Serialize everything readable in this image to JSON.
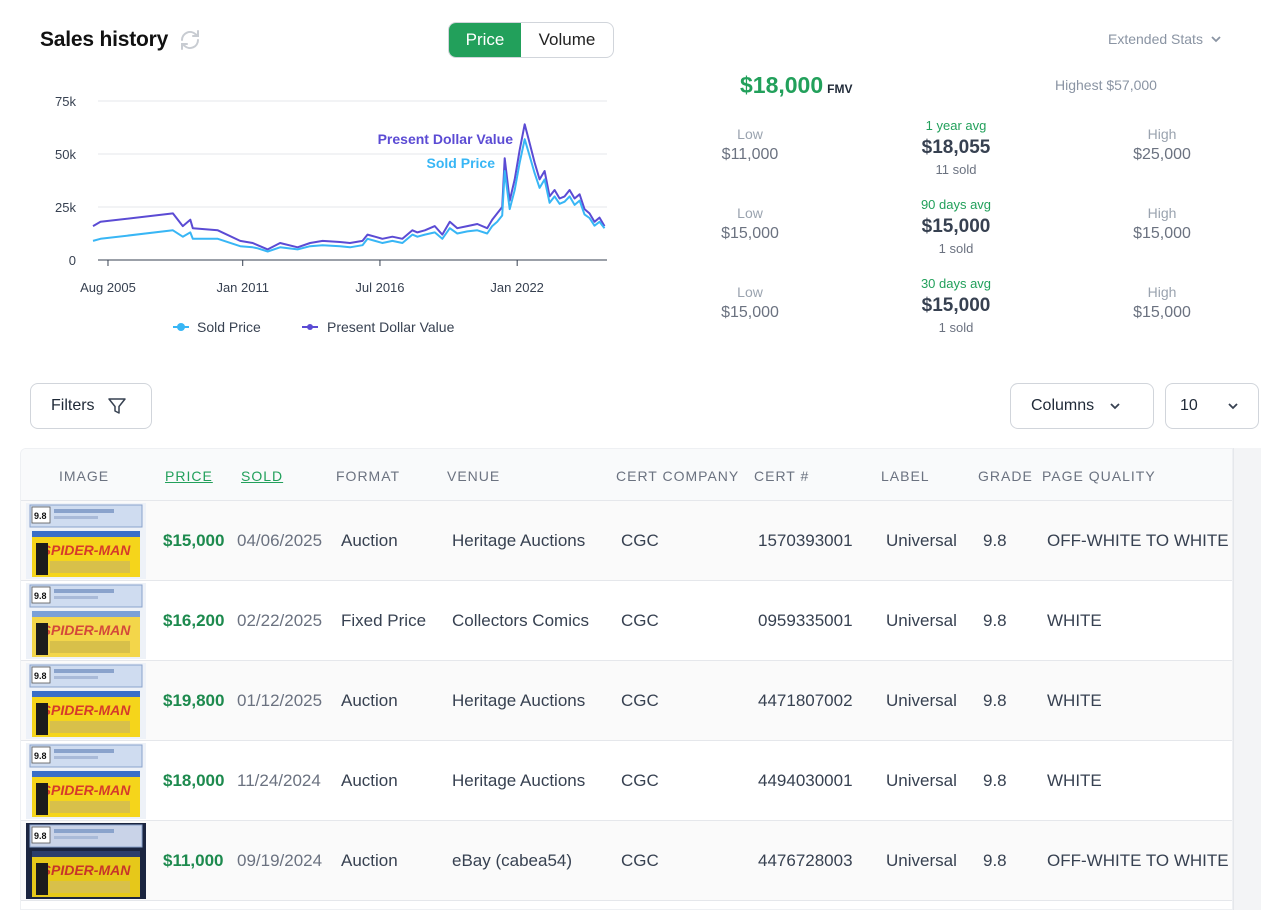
{
  "header": {
    "title": "Sales history",
    "toggle": {
      "price": "Price",
      "volume": "Volume",
      "active": "price"
    },
    "extended_stats": "Extended Stats"
  },
  "chart_data": {
    "type": "line",
    "x_ticks": [
      "Aug 2005",
      "Jan 2011",
      "Jul 2016",
      "Jan 2022"
    ],
    "y_ticks": [
      "0",
      "25k",
      "50k",
      "75k"
    ],
    "ylim": [
      0,
      75000
    ],
    "xlim": [
      2005.2,
      2025.6
    ],
    "annotations": [
      "Present Dollar Value",
      "Sold Price"
    ],
    "series": [
      {
        "name": "Present Dollar Value",
        "color": "#5b4bd4",
        "points": [
          [
            2005.0,
            16000
          ],
          [
            2005.3,
            18000
          ],
          [
            2008.2,
            22000
          ],
          [
            2008.6,
            16000
          ],
          [
            2008.9,
            19000
          ],
          [
            2009.0,
            15000
          ],
          [
            2010.0,
            14000
          ],
          [
            2010.9,
            9000
          ],
          [
            2011.4,
            8000
          ],
          [
            2011.6,
            7000
          ],
          [
            2012.0,
            5000
          ],
          [
            2012.5,
            8000
          ],
          [
            2013.2,
            6000
          ],
          [
            2013.7,
            8000
          ],
          [
            2014.2,
            9000
          ],
          [
            2014.9,
            8500
          ],
          [
            2015.3,
            8000
          ],
          [
            2015.8,
            9000
          ],
          [
            2016.0,
            12000
          ],
          [
            2016.3,
            11000
          ],
          [
            2016.6,
            10000
          ],
          [
            2017.0,
            11000
          ],
          [
            2017.4,
            10000
          ],
          [
            2017.8,
            14000
          ],
          [
            2018.0,
            13000
          ],
          [
            2018.3,
            14000
          ],
          [
            2018.7,
            16000
          ],
          [
            2019.0,
            12000
          ],
          [
            2019.3,
            18000
          ],
          [
            2019.6,
            15000
          ],
          [
            2020.0,
            16000
          ],
          [
            2020.4,
            17000
          ],
          [
            2020.8,
            15000
          ],
          [
            2021.0,
            19000
          ],
          [
            2021.2,
            22000
          ],
          [
            2021.4,
            25000
          ],
          [
            2021.5,
            48000
          ],
          [
            2021.7,
            28000
          ],
          [
            2021.9,
            38000
          ],
          [
            2022.1,
            52000
          ],
          [
            2022.3,
            64000
          ],
          [
            2022.5,
            55000
          ],
          [
            2022.7,
            46000
          ],
          [
            2022.9,
            38000
          ],
          [
            2023.1,
            42000
          ],
          [
            2023.3,
            30000
          ],
          [
            2023.5,
            33000
          ],
          [
            2023.7,
            29000
          ],
          [
            2023.9,
            30000
          ],
          [
            2024.1,
            33000
          ],
          [
            2024.3,
            29000
          ],
          [
            2024.5,
            31000
          ],
          [
            2024.7,
            24000
          ],
          [
            2024.9,
            22000
          ],
          [
            2025.1,
            18000
          ],
          [
            2025.3,
            20000
          ],
          [
            2025.5,
            16000
          ]
        ]
      },
      {
        "name": "Sold Price",
        "color": "#38b6f5",
        "points": [
          [
            2005.0,
            9000
          ],
          [
            2005.3,
            10000
          ],
          [
            2008.2,
            14000
          ],
          [
            2008.6,
            11000
          ],
          [
            2008.9,
            13000
          ],
          [
            2009.0,
            10000
          ],
          [
            2010.0,
            10000
          ],
          [
            2010.9,
            6500
          ],
          [
            2011.4,
            6000
          ],
          [
            2011.6,
            5500
          ],
          [
            2012.0,
            4000
          ],
          [
            2012.5,
            6000
          ],
          [
            2013.2,
            5000
          ],
          [
            2013.7,
            6500
          ],
          [
            2014.2,
            7000
          ],
          [
            2014.9,
            6500
          ],
          [
            2015.3,
            6000
          ],
          [
            2015.8,
            7000
          ],
          [
            2016.0,
            10000
          ],
          [
            2016.3,
            9000
          ],
          [
            2016.6,
            8000
          ],
          [
            2017.0,
            9000
          ],
          [
            2017.4,
            8000
          ],
          [
            2017.8,
            12000
          ],
          [
            2018.0,
            11000
          ],
          [
            2018.3,
            12000
          ],
          [
            2018.7,
            13000
          ],
          [
            2019.0,
            10000
          ],
          [
            2019.3,
            15000
          ],
          [
            2019.6,
            12500
          ],
          [
            2020.0,
            13500
          ],
          [
            2020.4,
            14000
          ],
          [
            2020.8,
            12500
          ],
          [
            2021.0,
            16000
          ],
          [
            2021.2,
            18000
          ],
          [
            2021.4,
            21000
          ],
          [
            2021.5,
            42000
          ],
          [
            2021.7,
            24000
          ],
          [
            2021.9,
            33000
          ],
          [
            2022.1,
            46000
          ],
          [
            2022.3,
            57000
          ],
          [
            2022.5,
            49000
          ],
          [
            2022.7,
            41000
          ],
          [
            2022.9,
            34000
          ],
          [
            2023.1,
            38000
          ],
          [
            2023.3,
            27000
          ],
          [
            2023.5,
            30000
          ],
          [
            2023.7,
            26500
          ],
          [
            2023.9,
            27500
          ],
          [
            2024.1,
            30000
          ],
          [
            2024.3,
            26000
          ],
          [
            2024.5,
            28000
          ],
          [
            2024.7,
            21500
          ],
          [
            2024.9,
            19800
          ],
          [
            2025.1,
            16200
          ],
          [
            2025.3,
            18000
          ],
          [
            2025.5,
            15000
          ]
        ]
      }
    ],
    "legend": [
      "Sold Price",
      "Present Dollar Value"
    ],
    "legend_placement": "bottom-center",
    "grid": true
  },
  "stats": {
    "fmv_value": "$18,000",
    "fmv_unit": "FMV",
    "highest": "Highest $57,000",
    "rows": [
      {
        "low_label": "Low",
        "low": "$11,000",
        "period": "1 year avg",
        "avg": "$18,055",
        "count": "11 sold",
        "high_label": "High",
        "high": "$25,000"
      },
      {
        "low_label": "Low",
        "low": "$15,000",
        "period": "90 days avg",
        "avg": "$15,000",
        "count": "1 sold",
        "high_label": "High",
        "high": "$15,000"
      },
      {
        "low_label": "Low",
        "low": "$15,000",
        "period": "30 days avg",
        "avg": "$15,000",
        "count": "1 sold",
        "high_label": "High",
        "high": "$15,000"
      }
    ]
  },
  "controls": {
    "filters": "Filters",
    "columns": "Columns",
    "per_page": "10"
  },
  "table": {
    "columns": [
      "IMAGE",
      "PRICE",
      "SOLD",
      "FORMAT",
      "VENUE",
      "CERT COMPANY",
      "CERT #",
      "LABEL",
      "GRADE",
      "PAGE QUALITY"
    ],
    "rows": [
      {
        "price": "$15,000",
        "sold": "04/06/2025",
        "format": "Auction",
        "venue": "Heritage Auctions",
        "company": "CGC",
        "cert": "1570393001",
        "label": "Universal",
        "grade": "9.8",
        "quality": "OFF-WHITE TO WHITE",
        "thumb_grade": "9.8",
        "thumb_title": "SPIDER-MAN"
      },
      {
        "price": "$16,200",
        "sold": "02/22/2025",
        "format": "Fixed Price",
        "venue": "Collectors Comics",
        "company": "CGC",
        "cert": "0959335001",
        "label": "Universal",
        "grade": "9.8",
        "quality": "WHITE",
        "thumb_grade": "9.8",
        "thumb_title": "SPIDER-MAN"
      },
      {
        "price": "$19,800",
        "sold": "01/12/2025",
        "format": "Auction",
        "venue": "Heritage Auctions",
        "company": "CGC",
        "cert": "4471807002",
        "label": "Universal",
        "grade": "9.8",
        "quality": "WHITE",
        "thumb_grade": "9.8",
        "thumb_title": "SPIDER-MAN"
      },
      {
        "price": "$18,000",
        "sold": "11/24/2024",
        "format": "Auction",
        "venue": "Heritage Auctions",
        "company": "CGC",
        "cert": "4494030001",
        "label": "Universal",
        "grade": "9.8",
        "quality": "WHITE",
        "thumb_grade": "9.8",
        "thumb_title": "SPIDER-MAN"
      },
      {
        "price": "$11,000",
        "sold": "09/19/2024",
        "format": "Auction",
        "venue": "eBay (cabea54)",
        "company": "CGC",
        "cert": "4476728003",
        "label": "Universal",
        "grade": "9.8",
        "quality": "OFF-WHITE TO WHITE",
        "thumb_grade": "9.8",
        "thumb_title": "SPIDER-MAN"
      }
    ]
  }
}
